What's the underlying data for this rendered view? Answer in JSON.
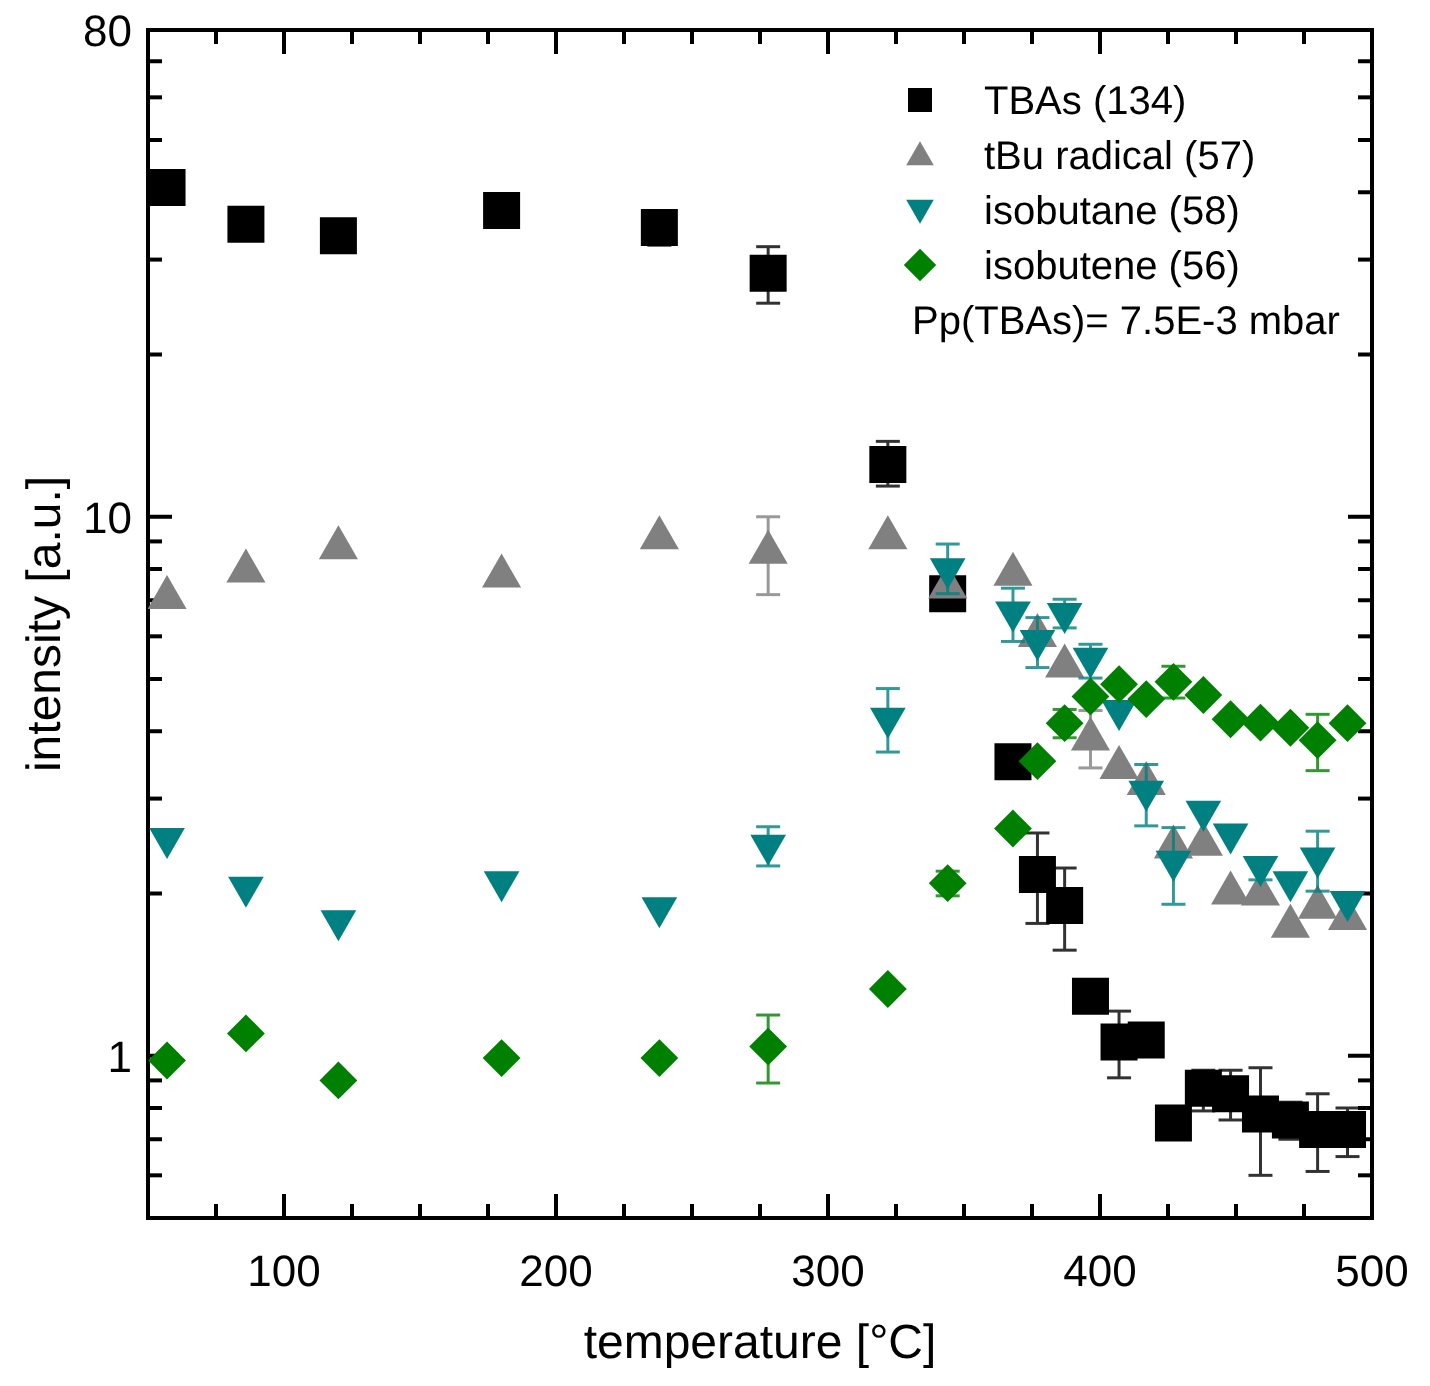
{
  "chart_data": {
    "type": "scatter",
    "xlabel": "temperature [°C]",
    "ylabel": "intensity [a.u.]",
    "log": "y",
    "xlim": [
      50,
      500
    ],
    "ylim": [
      0.5,
      80
    ],
    "xticks": [
      {
        "value": 75,
        "label": null
      },
      100,
      {
        "value": 125,
        "label": null
      },
      {
        "value": 150,
        "label": null
      },
      {
        "value": 175,
        "label": null
      },
      200,
      {
        "value": 225,
        "label": null
      },
      {
        "value": 250,
        "label": null
      },
      {
        "value": 275,
        "label": null
      },
      300,
      {
        "value": 325,
        "label": null
      },
      {
        "value": 350,
        "label": null
      },
      {
        "value": 375,
        "label": null
      },
      400,
      {
        "value": 425,
        "label": null
      },
      {
        "value": 450,
        "label": null
      },
      {
        "value": 475,
        "label": null
      },
      500
    ],
    "yticks": [
      {
        "value": 0.6,
        "label": null
      },
      {
        "value": 0.7,
        "label": null
      },
      {
        "value": 0.8,
        "label": null
      },
      {
        "value": 0.9,
        "label": null
      },
      1,
      {
        "value": 2,
        "label": null
      },
      {
        "value": 3,
        "label": null
      },
      {
        "value": 4,
        "label": null
      },
      {
        "value": 5,
        "label": null
      },
      {
        "value": 6,
        "label": null
      },
      {
        "value": 7,
        "label": null
      },
      {
        "value": 8,
        "label": null
      },
      {
        "value": 9,
        "label": null
      },
      10,
      {
        "value": 20,
        "label": null
      },
      {
        "value": 30,
        "label": null
      },
      {
        "value": 40,
        "label": null
      },
      {
        "value": 50,
        "label": null
      },
      {
        "value": 60,
        "label": null
      },
      {
        "value": 70,
        "label": null
      },
      80
    ],
    "x": [
      57,
      86,
      120,
      180,
      238,
      278,
      322,
      344,
      368,
      377,
      387,
      396.5,
      407,
      417,
      427,
      438,
      448,
      459,
      470,
      480,
      491
    ],
    "legend": "top right",
    "grid": false,
    "annotations": [
      "Pp(TBAs)= 7.5E-3 mbar"
    ],
    "series": [
      {
        "name": "TBAs (134)",
        "color": "#000000",
        "marker": "square",
        "values": [
          40.8,
          34.9,
          33.2,
          37.0,
          34.4,
          28.3,
          12.5,
          7.2,
          3.51,
          2.17,
          1.9,
          1.29,
          1.06,
          1.07,
          0.75,
          0.87,
          0.85,
          0.78,
          0.76,
          0.73,
          0.73
        ],
        "errors": [
          null,
          null,
          null,
          null,
          [
            31.9,
            37.0
          ],
          [
            24.9,
            31.7
          ],
          [
            11.4,
            13.8
          ],
          [
            6.75,
            7.7
          ],
          null,
          [
            1.76,
            2.59
          ],
          [
            1.57,
            2.23
          ],
          null,
          [
            0.91,
            1.21
          ],
          null,
          null,
          [
            0.79,
            0.94
          ],
          [
            0.76,
            0.94
          ],
          [
            0.6,
            0.95
          ],
          [
            0.7,
            0.82
          ],
          [
            0.61,
            0.85
          ],
          [
            0.65,
            0.8
          ]
        ]
      },
      {
        "name": "tBu radical (57)",
        "color": "#808080",
        "marker": "triangle",
        "values": [
          7.17,
          8.03,
          8.87,
          7.86,
          9.26,
          8.7,
          9.26,
          7.5,
          7.92,
          6.1,
          5.35,
          3.92,
          3.47,
          3.24,
          2.47,
          2.5,
          2.03,
          2.02,
          1.76,
          1.91,
          1.82
        ],
        "errors": [
          null,
          null,
          null,
          null,
          null,
          [
            7.17,
            10.0
          ],
          null,
          null,
          null,
          null,
          null,
          [
            3.42,
            4.37
          ],
          null,
          null,
          null,
          null,
          null,
          null,
          null,
          null,
          null
        ]
      },
      {
        "name": "isobutane (58)",
        "color": "#008080",
        "marker": "triangle-down",
        "values": [
          2.5,
          2.03,
          1.76,
          2.08,
          1.86,
          2.43,
          4.18,
          7.92,
          6.58,
          5.83,
          6.54,
          5.4,
          4.32,
          3.06,
          2.27,
          2.81,
          2.55,
          2.22,
          2.08,
          2.3,
          1.91
        ],
        "errors": [
          null,
          null,
          null,
          null,
          null,
          [
            2.25,
            2.66
          ],
          [
            3.66,
            4.8
          ],
          [
            7.2,
            8.9
          ],
          [
            5.87,
            7.37
          ],
          [
            5.25,
            6.5
          ],
          [
            6.22,
            7.03
          ],
          [
            5.02,
            5.8
          ],
          null,
          [
            2.67,
            3.47
          ],
          [
            1.91,
            2.65
          ],
          null,
          null,
          [
            2.12,
            2.33
          ],
          null,
          [
            2.02,
            2.61
          ],
          null
        ]
      },
      {
        "name": "isobutene (56)",
        "color": "#008000",
        "marker": "diamond",
        "values": [
          0.98,
          1.1,
          0.9,
          0.99,
          0.99,
          1.04,
          1.33,
          2.09,
          2.64,
          3.52,
          4.14,
          4.64,
          4.89,
          4.59,
          4.94,
          4.67,
          4.21,
          4.15,
          4.06,
          3.85,
          4.14
        ],
        "errors": [
          null,
          null,
          null,
          null,
          null,
          [
            0.89,
            1.19
          ],
          null,
          [
            1.98,
            2.2
          ],
          null,
          null,
          [
            3.89,
            4.39
          ],
          null,
          null,
          null,
          [
            4.61,
            5.28
          ],
          null,
          null,
          null,
          null,
          [
            3.38,
            4.3
          ],
          null
        ]
      }
    ]
  }
}
